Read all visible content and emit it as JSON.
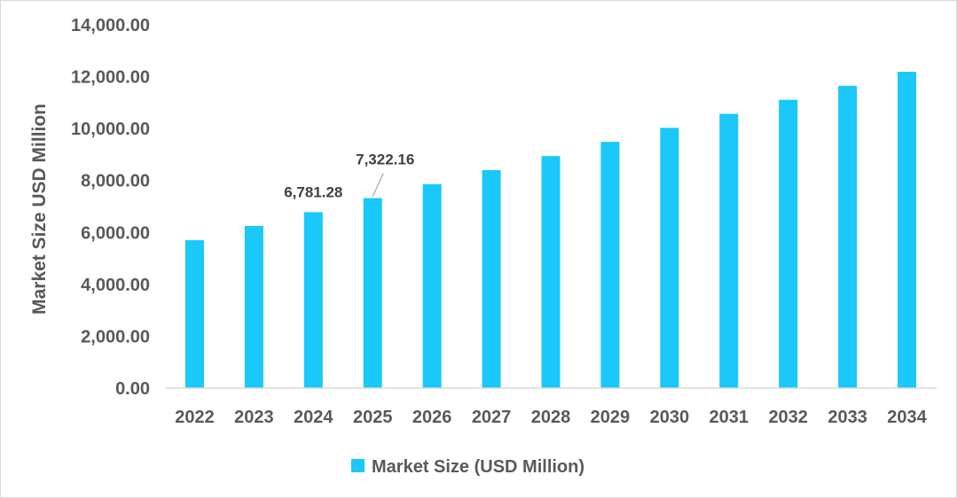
{
  "chart_data": {
    "type": "bar",
    "categories": [
      "2022",
      "2023",
      "2024",
      "2025",
      "2026",
      "2027",
      "2028",
      "2029",
      "2030",
      "2031",
      "2032",
      "2033",
      "2034"
    ],
    "series": [
      {
        "name": "Market Size (USD Million)",
        "color": "#1ac8f9",
        "values": [
          5700,
          6250,
          6781.28,
          7322.16,
          7860,
          8400,
          8940,
          9490,
          10030,
          10570,
          11110,
          11650,
          12190
        ]
      }
    ],
    "data_labels": [
      {
        "category": "2024",
        "text": "6,781.28"
      },
      {
        "category": "2025",
        "text": "7,322.16"
      }
    ],
    "ylabel": "Market Size USD Million",
    "xlabel": "",
    "title": "",
    "ylim": [
      0,
      14000
    ],
    "y_ticks": [
      "0.00",
      "2,000.00",
      "4,000.00",
      "6,000.00",
      "8,000.00",
      "10,000.00",
      "12,000.00",
      "14,000.00"
    ],
    "y_tick_values": [
      0,
      2000,
      4000,
      6000,
      8000,
      10000,
      12000,
      14000
    ],
    "grid": false,
    "legend_position": "bottom"
  }
}
